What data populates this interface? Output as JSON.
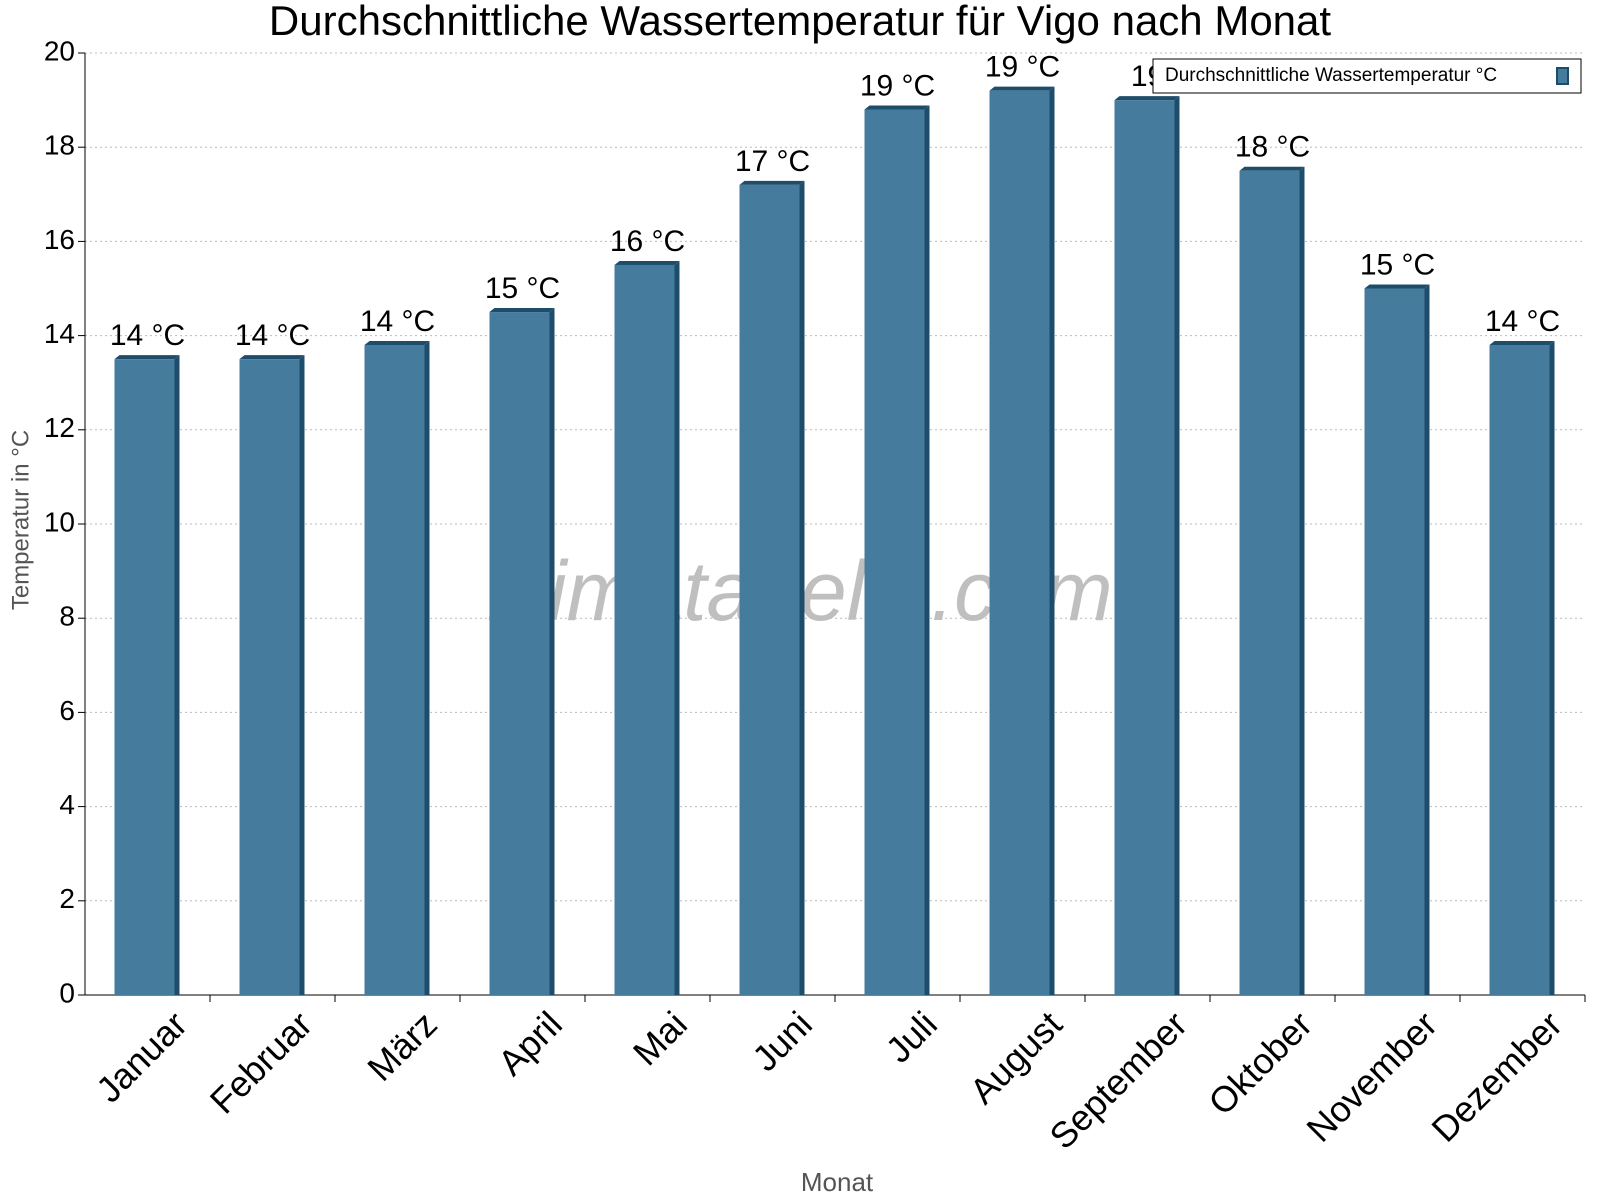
{
  "chart_data": {
    "type": "bar",
    "title": "Durchschnittliche Wassertemperatur für Vigo nach Monat",
    "watermark": "klimatabelle.com",
    "x_label": "Monat",
    "y_label": "Temperatur in °C",
    "categories": [
      "Januar",
      "Februar",
      "März",
      "April",
      "Mai",
      "Juni",
      "Juli",
      "August",
      "September",
      "Oktober",
      "November",
      "Dezember"
    ],
    "series": [
      {
        "name": "Durchschnittliche Wassertemperatur °C",
        "color": "#457b9d",
        "values": [
          13.5,
          13.5,
          13.8,
          14.5,
          15.5,
          17.2,
          18.8,
          19.2,
          19.0,
          17.5,
          15.0,
          13.8
        ],
        "value_labels": [
          "14 °C",
          "14 °C",
          "14 °C",
          "15 °C",
          "16 °C",
          "17 °C",
          "19 °C",
          "19 °C",
          "19",
          "18 °C",
          "15 °C",
          "14 °C"
        ]
      }
    ],
    "ylim": [
      0,
      20
    ],
    "yticks": [
      0,
      2,
      4,
      6,
      8,
      10,
      12,
      14,
      16,
      18,
      20
    ],
    "grid": true,
    "legend": "top-right"
  }
}
